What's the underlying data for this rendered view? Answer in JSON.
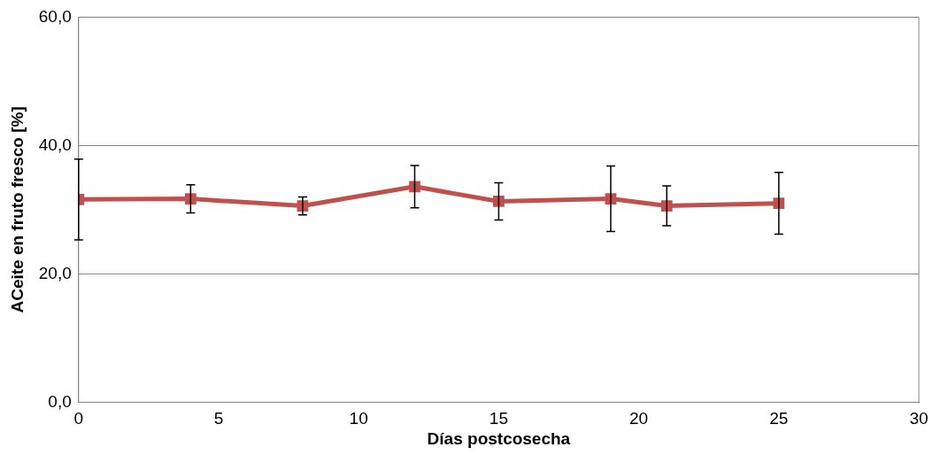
{
  "chart_data": {
    "type": "line",
    "xlabel": "Días postcosecha",
    "ylabel": "ACeite en fruto fresco [%]",
    "x": [
      0,
      4,
      8,
      12,
      15,
      19,
      21,
      25
    ],
    "series": [
      {
        "color": "#c0504d",
        "values": [
          31.6,
          31.7,
          30.6,
          33.6,
          31.3,
          31.7,
          30.6,
          31.0
        ],
        "errors": [
          6.3,
          2.2,
          1.4,
          3.3,
          2.9,
          5.1,
          3.1,
          4.8
        ]
      }
    ],
    "xlim": [
      0,
      30
    ],
    "xticks": [
      0,
      5,
      10,
      15,
      20,
      25,
      30
    ],
    "ylim": [
      0,
      60
    ],
    "yticks": [
      {
        "value": 0,
        "label": "0,0"
      },
      {
        "value": 20,
        "label": "20,0"
      },
      {
        "value": 40,
        "label": "40,0"
      },
      {
        "value": 60,
        "label": "60,0"
      }
    ],
    "grid": "y",
    "legend": false,
    "marker": "square",
    "line_style": "solid"
  }
}
